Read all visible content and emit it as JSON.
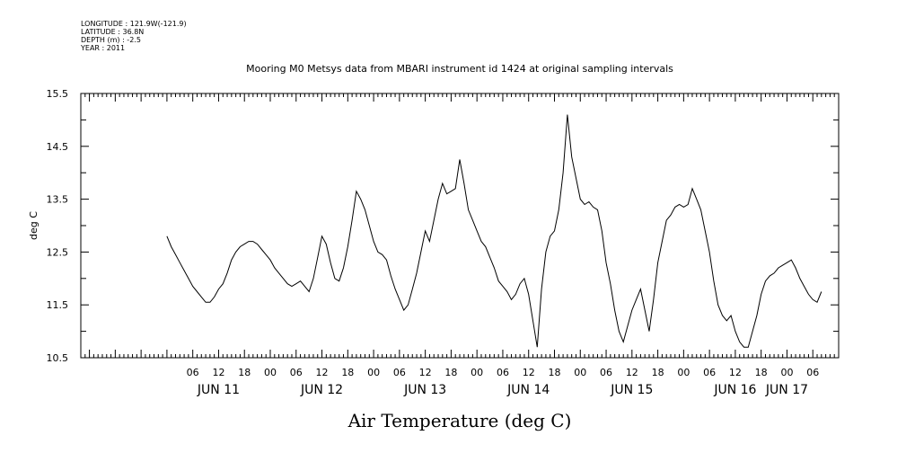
{
  "meta": {
    "longitude": "LONGITUDE : 121.9W(-121.9)",
    "latitude": "LATITUDE : 36.8N",
    "depth": "DEPTH (m) : -2.5",
    "year": "YEAR : 2011"
  },
  "chart_data": {
    "type": "line",
    "title": "Mooring M0 Metsys data from MBARI instrument id 1424 at original sampling intervals",
    "xlabel": "Air Temperature (deg C)",
    "ylabel": "deg C",
    "x_unit": "hours from JUN 11 00:00",
    "xlim": [
      -20,
      156
    ],
    "ylim": [
      10.5,
      15.5
    ],
    "yticks": [
      "10.5",
      "11.5",
      "12.5",
      "13.5",
      "14.5",
      "15.5"
    ],
    "hour_ticks": [
      {
        "hour": 6,
        "label": "06"
      },
      {
        "hour": 12,
        "label": "12"
      },
      {
        "hour": 18,
        "label": "18"
      },
      {
        "hour": 24,
        "label": "00"
      },
      {
        "hour": 30,
        "label": "06"
      },
      {
        "hour": 36,
        "label": "12"
      },
      {
        "hour": 42,
        "label": "18"
      },
      {
        "hour": 48,
        "label": "00"
      },
      {
        "hour": 54,
        "label": "06"
      },
      {
        "hour": 60,
        "label": "12"
      },
      {
        "hour": 66,
        "label": "18"
      },
      {
        "hour": 72,
        "label": "00"
      },
      {
        "hour": 78,
        "label": "06"
      },
      {
        "hour": 84,
        "label": "12"
      },
      {
        "hour": 90,
        "label": "18"
      },
      {
        "hour": 96,
        "label": "00"
      },
      {
        "hour": 102,
        "label": "06"
      },
      {
        "hour": 108,
        "label": "12"
      },
      {
        "hour": 114,
        "label": "18"
      },
      {
        "hour": 120,
        "label": "00"
      },
      {
        "hour": 126,
        "label": "06"
      },
      {
        "hour": 132,
        "label": "12"
      },
      {
        "hour": 138,
        "label": "18"
      },
      {
        "hour": 144,
        "label": "00"
      },
      {
        "hour": 150,
        "label": "06"
      }
    ],
    "day_labels": [
      {
        "hour": 12,
        "label": "JUN 11"
      },
      {
        "hour": 36,
        "label": "JUN 12"
      },
      {
        "hour": 60,
        "label": "JUN 13"
      },
      {
        "hour": 84,
        "label": "JUN 14"
      },
      {
        "hour": 108,
        "label": "JUN 15"
      },
      {
        "hour": 132,
        "label": "JUN 16"
      },
      {
        "hour": 144,
        "label": "JUN 17"
      }
    ],
    "grid": false,
    "legend": "none",
    "series": [
      {
        "x": [
          0,
          1,
          2,
          3,
          4,
          5,
          6,
          7,
          8,
          9,
          10,
          11,
          12,
          13,
          14,
          15,
          16,
          17,
          18,
          19,
          20,
          21,
          22,
          23,
          24,
          25,
          26,
          27,
          28,
          29,
          30,
          31,
          32,
          33,
          34,
          35,
          36,
          37,
          38,
          39,
          40,
          41,
          42,
          43,
          44,
          45,
          46,
          47,
          48,
          49,
          50,
          51,
          52,
          53,
          54,
          55,
          56,
          57,
          58,
          59,
          60,
          61,
          62,
          63,
          64,
          65,
          66,
          67,
          68,
          69,
          70,
          71,
          72,
          73,
          74,
          75,
          76,
          77,
          78,
          79,
          80,
          81,
          82,
          83,
          84,
          85,
          86,
          87,
          88,
          89,
          90,
          91,
          92,
          93,
          94,
          95,
          96,
          97,
          98,
          99,
          100,
          101,
          102,
          103,
          104,
          105,
          106,
          107,
          108,
          109,
          110,
          111,
          112,
          113,
          114,
          115,
          116,
          117,
          118,
          119,
          120,
          121,
          122,
          123,
          124,
          125,
          126,
          127,
          128,
          129,
          130,
          131,
          132,
          133,
          134,
          135,
          136,
          137,
          138,
          139,
          140,
          141,
          142,
          143,
          144,
          145,
          146,
          147,
          148,
          149,
          150,
          151,
          152
        ],
        "y": [
          12.8,
          12.6,
          12.45,
          12.3,
          12.15,
          12.0,
          11.85,
          11.75,
          11.65,
          11.55,
          11.55,
          11.65,
          11.8,
          11.9,
          12.1,
          12.35,
          12.5,
          12.6,
          12.65,
          12.7,
          12.7,
          12.65,
          12.55,
          12.45,
          12.35,
          12.2,
          12.1,
          12.0,
          11.9,
          11.85,
          11.9,
          11.95,
          11.85,
          11.75,
          12.0,
          12.4,
          12.8,
          12.65,
          12.3,
          12.0,
          11.95,
          12.2,
          12.6,
          13.1,
          13.65,
          13.5,
          13.3,
          13.0,
          12.7,
          12.5,
          12.45,
          12.35,
          12.05,
          11.8,
          11.6,
          11.4,
          11.5,
          11.8,
          12.1,
          12.5,
          12.9,
          12.7,
          13.1,
          13.5,
          13.8,
          13.6,
          13.65,
          13.7,
          14.25,
          13.8,
          13.3,
          13.1,
          12.9,
          12.7,
          12.6,
          12.4,
          12.2,
          11.95,
          11.85,
          11.75,
          11.6,
          11.7,
          11.9,
          12.0,
          11.7,
          11.2,
          10.7,
          11.8,
          12.5,
          12.8,
          12.9,
          13.3,
          14.0,
          15.1,
          14.3,
          13.9,
          13.5,
          13.4,
          13.45,
          13.35,
          13.3,
          12.9,
          12.3,
          11.9,
          11.4,
          11.0,
          10.8,
          11.1,
          11.4,
          11.6,
          11.8,
          11.4,
          11.0,
          11.6,
          12.3,
          12.7,
          13.1,
          13.2,
          13.35,
          13.4,
          13.35,
          13.4,
          13.7,
          13.5,
          13.3,
          12.9,
          12.5,
          11.95,
          11.5,
          11.3,
          11.2,
          11.3,
          11.0,
          10.8,
          10.7,
          10.7,
          11.0,
          11.3,
          11.7,
          11.95,
          12.05,
          12.1,
          12.2,
          12.25,
          12.3,
          12.35,
          12.2,
          12.0,
          11.85,
          11.7,
          11.6,
          11.55,
          11.75
        ]
      }
    ]
  }
}
